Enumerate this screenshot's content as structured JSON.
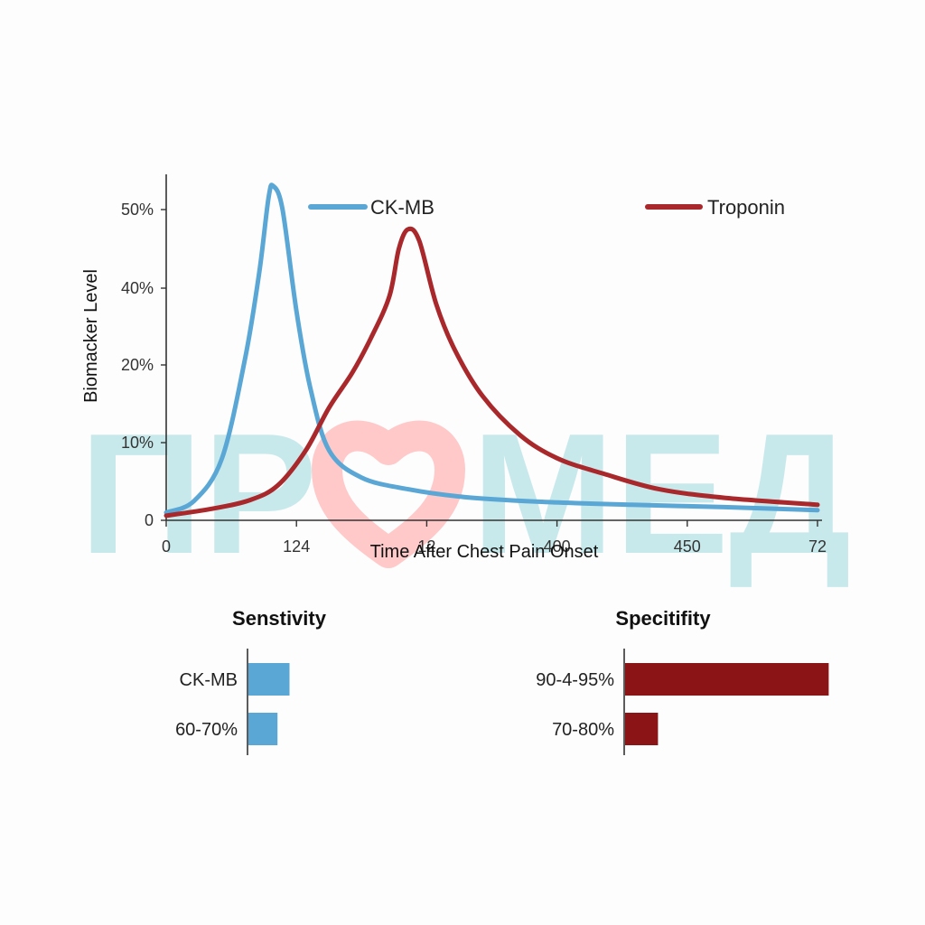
{
  "colors": {
    "ckmb": "#5aa7d6",
    "troponin": "#a8282b",
    "troponin_bar": "#8b1416",
    "axis": "#333333",
    "watermark": "#bfe6e8",
    "watermark_heart": "#ffc9c9"
  },
  "watermark": {
    "left": "ПР",
    "right": "МЕД",
    "icon": "heart-icon"
  },
  "chart_data": [
    {
      "type": "line",
      "title": "",
      "xlabel": "Time After Chest Pain Onset",
      "ylabel": "Biomacker Level",
      "x_tick_labels": [
        "0",
        "124",
        "12",
        "400",
        "450",
        "72"
      ],
      "y_tick_labels": [
        "0",
        "10%",
        "20%",
        "40%",
        "50%"
      ],
      "y_tick_values": [
        0,
        10,
        20,
        40,
        50
      ],
      "ylim": [
        0,
        54
      ],
      "x_domain": [
        0,
        7
      ],
      "grid": false,
      "legend_placement": "top",
      "series": [
        {
          "name": "CK-MB",
          "color_key": "ckmb",
          "points": [
            [
              0,
              1
            ],
            [
              0.3,
              2.5
            ],
            [
              0.6,
              8
            ],
            [
              0.85,
              22
            ],
            [
              1.0,
              42
            ],
            [
              1.1,
              51.5
            ],
            [
              1.15,
              53
            ],
            [
              1.25,
              50
            ],
            [
              1.4,
              34
            ],
            [
              1.55,
              17
            ],
            [
              1.75,
              9
            ],
            [
              2.1,
              5.5
            ],
            [
              2.6,
              4
            ],
            [
              3.2,
              3
            ],
            [
              4.0,
              2.4
            ],
            [
              5.0,
              2
            ],
            [
              6.0,
              1.7
            ],
            [
              7.0,
              1.3
            ]
          ]
        },
        {
          "name": "Troponin",
          "color_key": "troponin",
          "points": [
            [
              0,
              0.6
            ],
            [
              0.5,
              1.5
            ],
            [
              0.9,
              2.6
            ],
            [
              1.2,
              4.5
            ],
            [
              1.5,
              9
            ],
            [
              1.75,
              14.5
            ],
            [
              2.0,
              19
            ],
            [
              2.2,
              27
            ],
            [
              2.4,
              38
            ],
            [
              2.5,
              45
            ],
            [
              2.6,
              47.5
            ],
            [
              2.72,
              46
            ],
            [
              2.9,
              36
            ],
            [
              3.1,
              24
            ],
            [
              3.4,
              16
            ],
            [
              3.8,
              11
            ],
            [
              4.2,
              8
            ],
            [
              4.7,
              6
            ],
            [
              5.3,
              4
            ],
            [
              6.0,
              2.9
            ],
            [
              7.0,
              2
            ]
          ]
        }
      ]
    },
    {
      "type": "bar",
      "title": "Senstivity",
      "orientation": "horizontal",
      "categories": [
        "CK-MB",
        "60-70%"
      ],
      "series": [
        {
          "values": [
            65,
            46
          ],
          "color_key": "ckmb"
        }
      ],
      "xlim": [
        0,
        325
      ]
    },
    {
      "type": "bar",
      "title": "Specitifity",
      "orientation": "horizontal",
      "categories": [
        "90-4-95%",
        "70-80%"
      ],
      "series": [
        {
          "values": [
            322,
            52
          ],
          "color_key": "troponin_bar"
        }
      ],
      "xlim": [
        0,
        325
      ]
    }
  ]
}
